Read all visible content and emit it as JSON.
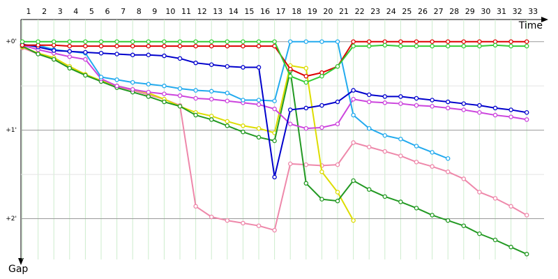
{
  "chart_data": {
    "type": "line",
    "xlabel": "Time",
    "ylabel": "Gap",
    "categories": [
      "1",
      "2",
      "3",
      "4",
      "5",
      "6",
      "7",
      "8",
      "9",
      "10",
      "11",
      "12",
      "13",
      "14",
      "15",
      "16",
      "17",
      "18",
      "19",
      "20",
      "21",
      "22",
      "23",
      "24",
      "25",
      "26",
      "27",
      "28",
      "29",
      "30",
      "31",
      "32",
      "33"
    ],
    "ylim": [
      -0.25,
      2.5
    ],
    "y_reversed": true,
    "yticks": [
      {
        "value": 0,
        "label": "+0'"
      },
      {
        "value": 1,
        "label": "+1'"
      },
      {
        "value": 2,
        "label": "+2'"
      }
    ],
    "minor_yticks": [
      0.5,
      1.5
    ],
    "grid": true,
    "series": [
      {
        "color": "#ee88aa",
        "values": [
          0.07,
          0.14,
          0.2,
          0.28,
          0.37,
          0.45,
          0.51,
          0.55,
          0.6,
          0.65,
          0.72,
          1.86,
          1.98,
          2.02,
          2.05,
          2.08,
          2.13,
          1.38,
          1.39,
          1.4,
          1.39,
          1.14,
          1.19,
          1.24,
          1.29,
          1.36,
          1.41,
          1.47,
          1.55,
          1.7,
          1.77,
          1.86,
          1.96
        ]
      },
      {
        "color": "#dddd00",
        "values": [
          0.06,
          0.13,
          0.18,
          0.28,
          0.37,
          0.44,
          0.5,
          0.54,
          0.58,
          0.65,
          0.73,
          0.8,
          0.84,
          0.9,
          0.95,
          0.98,
          1.03,
          0.27,
          0.3,
          1.47,
          1.7,
          2.02,
          null,
          null,
          null,
          null,
          null,
          null,
          null,
          null,
          null,
          null,
          null
        ]
      },
      {
        "color": "#229922",
        "values": [
          0.05,
          0.14,
          0.2,
          0.3,
          0.38,
          0.45,
          0.52,
          0.57,
          0.62,
          0.68,
          0.73,
          0.83,
          0.88,
          0.95,
          1.02,
          1.08,
          1.12,
          0.33,
          1.6,
          1.78,
          1.8,
          1.57,
          1.67,
          1.75,
          1.81,
          1.88,
          1.96,
          2.02,
          2.08,
          2.17,
          2.24,
          2.32,
          2.4
        ]
      },
      {
        "color": "#cc44dd",
        "values": [
          0.04,
          0.09,
          0.13,
          0.17,
          0.2,
          0.42,
          0.5,
          0.54,
          0.57,
          0.59,
          0.61,
          0.64,
          0.65,
          0.67,
          0.69,
          0.71,
          0.76,
          0.93,
          0.98,
          0.97,
          0.93,
          0.65,
          0.68,
          0.69,
          0.7,
          0.72,
          0.73,
          0.75,
          0.77,
          0.8,
          0.83,
          0.85,
          0.88
        ]
      },
      {
        "color": "#22aaee",
        "values": [
          0.04,
          0.04,
          0.09,
          0.11,
          0.13,
          0.4,
          0.43,
          0.46,
          0.48,
          0.5,
          0.53,
          0.55,
          0.56,
          0.58,
          0.66,
          0.66,
          0.67,
          0,
          0,
          0,
          0,
          0.83,
          0.98,
          1.06,
          1.1,
          1.18,
          1.25,
          1.32,
          null,
          null,
          null,
          null,
          null
        ]
      },
      {
        "color": "#0000cc",
        "values": [
          0.03,
          0.06,
          0.1,
          0.11,
          0.12,
          0.13,
          0.14,
          0.15,
          0.15,
          0.16,
          0.19,
          0.24,
          0.26,
          0.28,
          0.29,
          0.29,
          1.53,
          0.77,
          0.75,
          0.72,
          0.68,
          0.55,
          0.6,
          0.62,
          0.62,
          0.64,
          0.66,
          0.68,
          0.7,
          0.72,
          0.75,
          0.77,
          0.8
        ]
      },
      {
        "color": "#dd0000",
        "values": [
          0.04,
          0.04,
          0.04,
          0.05,
          0.05,
          0.05,
          0.05,
          0.05,
          0.05,
          0.05,
          0.05,
          0.05,
          0.05,
          0.05,
          0.05,
          0.05,
          0.05,
          0.31,
          0.39,
          0.35,
          0.28,
          0,
          0,
          0,
          0,
          0,
          0,
          0,
          0,
          0,
          0,
          0,
          0
        ]
      },
      {
        "color": "#33cc33",
        "values": [
          0,
          0,
          0,
          0,
          0,
          0,
          0,
          0,
          0,
          0,
          0,
          0,
          0,
          0,
          0,
          0,
          0,
          0.39,
          0.46,
          0.39,
          0.28,
          0.05,
          0.05,
          0.04,
          0.05,
          0.05,
          0.05,
          0.05,
          0.05,
          0.05,
          0.04,
          0.05,
          0.05
        ]
      }
    ]
  }
}
